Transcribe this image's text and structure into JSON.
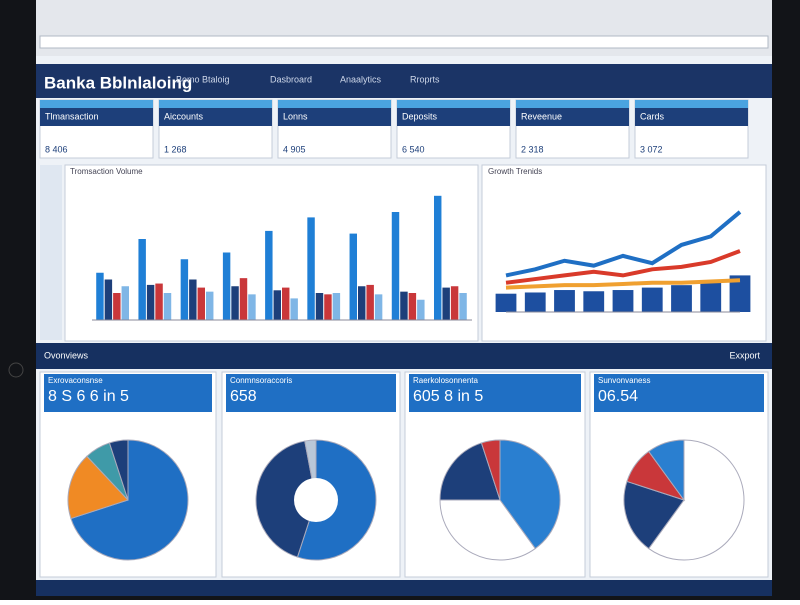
{
  "header": {
    "title": "Banka Bblnlaloing",
    "subtitle": "Bomo Btaloig",
    "menu": [
      "Dasbroard",
      "Anaalytics",
      "Rroprts"
    ]
  },
  "kpis": [
    {
      "label": "Tlmansaction",
      "value": "8 406"
    },
    {
      "label": "Aiccounts",
      "value": "1 268"
    },
    {
      "label": "Lonns",
      "value": "4 905"
    },
    {
      "label": "Deposits",
      "value": "6 540"
    },
    {
      "label": "Reveenue",
      "value": "2 318"
    },
    {
      "label": "Cards",
      "value": "3 072"
    }
  ],
  "bar_chart": {
    "type": "bar",
    "title": "Tromsaction Volume",
    "ylim": [
      0,
      100
    ],
    "series": [
      {
        "color": "#1f7fd6",
        "values": [
          35,
          60,
          45,
          50,
          66,
          76,
          64,
          80,
          92
        ]
      },
      {
        "color": "#1d3f7a",
        "values": [
          30,
          26,
          30,
          25,
          22,
          20,
          25,
          21,
          24
        ]
      },
      {
        "color": "#c9373a",
        "values": [
          20,
          27,
          24,
          31,
          24,
          19,
          26,
          20,
          25
        ]
      },
      {
        "color": "#7fb6e6",
        "values": [
          25,
          20,
          21,
          19,
          16,
          20,
          19,
          15,
          20
        ]
      }
    ]
  },
  "line_chart": {
    "type": "line",
    "title": "Growth Trenids",
    "ylim": [
      0,
      100
    ],
    "series": [
      {
        "color": "#1f6fc4",
        "values": [
          30,
          35,
          42,
          38,
          46,
          40,
          55,
          62,
          82
        ]
      },
      {
        "color": "#d93a2a",
        "values": [
          24,
          27,
          30,
          33,
          30,
          35,
          37,
          41,
          50
        ]
      },
      {
        "color": "#f0a030",
        "values": [
          20,
          21,
          22,
          22,
          23,
          24,
          24,
          25,
          26
        ]
      }
    ],
    "bars": {
      "color": "#1d4fa0",
      "values": [
        15,
        16,
        18,
        17,
        18,
        20,
        22,
        25,
        30
      ]
    }
  },
  "band": {
    "title": "Ovonviews",
    "action": "Exxport"
  },
  "pies": [
    {
      "type": "pie",
      "title": "Exrovaconsnse",
      "value": "8 S 6 6 in 5",
      "donut": false,
      "slices": [
        {
          "color": "#1f6fc4",
          "value": 70
        },
        {
          "color": "#f08a24",
          "value": 18
        },
        {
          "color": "#3f9aa8",
          "value": 7
        },
        {
          "color": "#1d3f7a",
          "value": 5
        }
      ]
    },
    {
      "type": "pie",
      "title": "Conmnsoraccoris",
      "value": "658",
      "donut": true,
      "slices": [
        {
          "color": "#1f6fc4",
          "value": 55
        },
        {
          "color": "#1d3f7a",
          "value": 42
        },
        {
          "color": "#b9c7d8",
          "value": 3
        }
      ]
    },
    {
      "type": "pie",
      "title": "Raerkolosonnenta",
      "value": "605 8 in 5",
      "donut": false,
      "slices": [
        {
          "color": "#2a7fd0",
          "value": 40
        },
        {
          "color": "#ffffff",
          "value": 35
        },
        {
          "color": "#1d3f7a",
          "value": 20
        },
        {
          "color": "#c9373a",
          "value": 5
        }
      ]
    },
    {
      "type": "pie",
      "title": "Sunvonvaness",
      "value": "06.54",
      "donut": false,
      "slices": [
        {
          "color": "#ffffff",
          "value": 60
        },
        {
          "color": "#1d3f7a",
          "value": 20
        },
        {
          "color": "#c9373a",
          "value": 10
        },
        {
          "color": "#2a7fd0",
          "value": 10
        }
      ]
    }
  ]
}
